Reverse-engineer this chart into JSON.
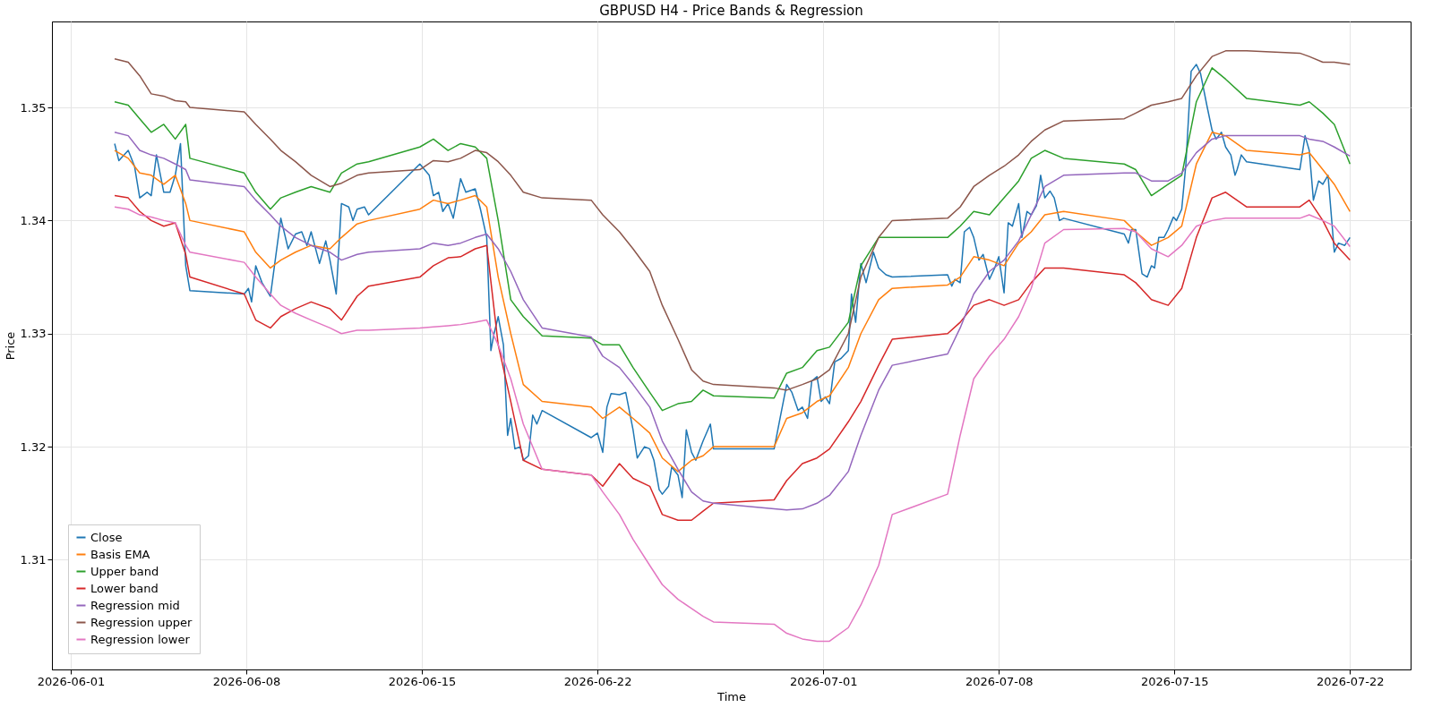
{
  "chart_data": {
    "type": "line",
    "title": "GBPUSD H4 - Price Bands & Regression",
    "xlabel": "Time",
    "ylabel": "Price",
    "xlim": [
      "2026-05-31T06:00",
      "2026-07-24T10:00"
    ],
    "ylim": [
      1.3003,
      1.3576
    ],
    "xticks": [
      "2026-06-01",
      "2026-06-08",
      "2026-06-15",
      "2026-06-22",
      "2026-07-01",
      "2026-07-08",
      "2026-07-15",
      "2026-07-22"
    ],
    "yticks": [
      1.31,
      1.32,
      1.33,
      1.34,
      1.35
    ],
    "grid": true,
    "legend": "bottom left",
    "line_style": "solid",
    "marker": "none",
    "x": [
      "2026-06-02T18:00",
      "2026-06-03T07:00",
      "2026-06-03T18:00",
      "2026-06-04T05:00",
      "2026-06-04T17:00",
      "2026-06-05T04:00",
      "2026-06-05T14:00",
      "2026-06-05T18:00",
      "2026-06-07T22:00",
      "2026-06-08T09:00",
      "2026-06-08T23:00",
      "2026-06-09T09:00",
      "2026-06-09T23:00",
      "2026-06-10T14:00",
      "2026-06-11T08:00",
      "2026-06-11T19:00",
      "2026-06-12T10:00",
      "2026-06-12T21:00",
      "2026-06-14T22:00",
      "2026-06-15T11:00",
      "2026-06-16T01:00",
      "2026-06-16T13:00",
      "2026-06-17T03:00",
      "2026-06-17T14:00",
      "2026-06-18T01:00",
      "2026-06-18T13:00",
      "2026-06-19T01:00",
      "2026-06-19T19:00",
      "2026-06-21T18:00",
      "2026-06-22T05:00",
      "2026-06-22T21:00",
      "2026-06-23T10:00",
      "2026-06-24T02:00",
      "2026-06-24T14:00",
      "2026-06-25T05:00",
      "2026-06-25T18:00",
      "2026-06-26T05:00",
      "2026-06-26T15:00",
      "2026-06-29T01:00",
      "2026-06-29T13:00",
      "2026-06-30T04:00",
      "2026-06-30T18:00",
      "2026-07-01T06:00",
      "2026-07-02T00:00",
      "2026-07-02T12:00",
      "2026-07-03T05:00",
      "2026-07-03T18:00",
      "2026-07-05T23:00",
      "2026-07-06T11:00",
      "2026-07-07T00:00",
      "2026-07-07T15:00",
      "2026-07-08T05:00",
      "2026-07-08T19:00",
      "2026-07-09T07:00",
      "2026-07-09T20:00",
      "2026-07-10T14:00",
      "2026-07-13T00:00",
      "2026-07-13T11:00",
      "2026-07-14T02:00",
      "2026-07-14T18:00",
      "2026-07-15T07:00",
      "2026-07-15T21:00",
      "2026-07-16T12:00",
      "2026-07-17T01:00",
      "2026-07-17T21:00",
      "2026-07-20T00:00",
      "2026-07-20T09:00",
      "2026-07-20T22:00",
      "2026-07-21T09:00",
      "2026-07-22T00:00"
    ],
    "series": [
      {
        "name": "Close",
        "color": "#1f77b4",
        "x": [
          "2026-06-02T18:00",
          "2026-06-02T22:00",
          "2026-06-03T07:00",
          "2026-06-03T13:00",
          "2026-06-03T18:00",
          "2026-06-04T01:00",
          "2026-06-04T05:00",
          "2026-06-04T10:00",
          "2026-06-04T17:00",
          "2026-06-04T23:00",
          "2026-06-05T04:00",
          "2026-06-05T09:00",
          "2026-06-05T14:00",
          "2026-06-05T18:00",
          "2026-06-07T22:00",
          "2026-06-08T02:00",
          "2026-06-08T05:00",
          "2026-06-08T09:00",
          "2026-06-08T15:00",
          "2026-06-08T23:00",
          "2026-06-09T09:00",
          "2026-06-09T16:00",
          "2026-06-09T23:00",
          "2026-06-10T05:00",
          "2026-06-10T10:00",
          "2026-06-10T14:00",
          "2026-06-10T22:00",
          "2026-06-11T04:00",
          "2026-06-11T08:00",
          "2026-06-11T14:00",
          "2026-06-11T19:00",
          "2026-06-12T02:00",
          "2026-06-12T06:00",
          "2026-06-12T10:00",
          "2026-06-12T17:00",
          "2026-06-12T21:00",
          "2026-06-14T22:00",
          "2026-06-15T07:00",
          "2026-06-15T11:00",
          "2026-06-15T16:00",
          "2026-06-15T20:00",
          "2026-06-16T01:00",
          "2026-06-16T06:00",
          "2026-06-16T13:00",
          "2026-06-16T18:00",
          "2026-06-17T03:00",
          "2026-06-17T08:00",
          "2026-06-17T14:00",
          "2026-06-17T18:00",
          "2026-06-17T21:00",
          "2026-06-18T01:00",
          "2026-06-18T06:00",
          "2026-06-18T10:00",
          "2026-06-18T13:00",
          "2026-06-18T17:00",
          "2026-06-18T22:00",
          "2026-06-19T01:00",
          "2026-06-19T06:00",
          "2026-06-19T10:00",
          "2026-06-19T14:00",
          "2026-06-19T19:00",
          "2026-06-21T18:00",
          "2026-06-22T00:00",
          "2026-06-22T05:00",
          "2026-06-22T09:00",
          "2026-06-22T13:00",
          "2026-06-22T21:00",
          "2026-06-23T03:00",
          "2026-06-23T10:00",
          "2026-06-23T14:00",
          "2026-06-23T21:00",
          "2026-06-24T02:00",
          "2026-06-24T06:00",
          "2026-06-24T11:00",
          "2026-06-24T14:00",
          "2026-06-24T20:00",
          "2026-06-24T23:00",
          "2026-06-25T05:00",
          "2026-06-25T09:00",
          "2026-06-25T13:00",
          "2026-06-25T18:00",
          "2026-06-25T22:00",
          "2026-06-26T05:00",
          "2026-06-26T12:00",
          "2026-06-26T15:00",
          "2026-06-29T01:00",
          "2026-06-29T06:00",
          "2026-06-29T13:00",
          "2026-06-29T18:00",
          "2026-06-30T00:00",
          "2026-06-30T04:00",
          "2026-06-30T09:00",
          "2026-06-30T13:00",
          "2026-06-30T18:00",
          "2026-06-30T22:00",
          "2026-07-01T02:00",
          "2026-07-01T06:00",
          "2026-07-01T11:00",
          "2026-07-01T17:00",
          "2026-07-02T00:00",
          "2026-07-02T03:00",
          "2026-07-02T07:00",
          "2026-07-02T12:00",
          "2026-07-02T17:00",
          "2026-07-03T00:00",
          "2026-07-03T05:00",
          "2026-07-03T12:00",
          "2026-07-03T18:00",
          "2026-07-05T23:00",
          "2026-07-06T03:00",
          "2026-07-06T06:00",
          "2026-07-06T11:00",
          "2026-07-06T15:00",
          "2026-07-06T20:00",
          "2026-07-07T00:00",
          "2026-07-07T05:00",
          "2026-07-07T09:00",
          "2026-07-07T15:00",
          "2026-07-07T20:00",
          "2026-07-08T00:00",
          "2026-07-08T05:00",
          "2026-07-08T09:00",
          "2026-07-08T13:00",
          "2026-07-08T19:00",
          "2026-07-08T22:00",
          "2026-07-09T03:00",
          "2026-07-09T07:00",
          "2026-07-09T12:00",
          "2026-07-09T16:00",
          "2026-07-09T20:00",
          "2026-07-10T01:00",
          "2026-07-10T05:00",
          "2026-07-10T10:00",
          "2026-07-10T14:00",
          "2026-07-13T00:00",
          "2026-07-13T04:00",
          "2026-07-13T07:00",
          "2026-07-13T11:00",
          "2026-07-13T17:00",
          "2026-07-13T22:00",
          "2026-07-14T02:00",
          "2026-07-14T05:00",
          "2026-07-14T09:00",
          "2026-07-14T14:00",
          "2026-07-14T18:00",
          "2026-07-14T23:00",
          "2026-07-15T02:00",
          "2026-07-15T07:00",
          "2026-07-15T11:00",
          "2026-07-15T16:00",
          "2026-07-15T21:00",
          "2026-07-16T01:00",
          "2026-07-16T07:00",
          "2026-07-16T12:00",
          "2026-07-16T16:00",
          "2026-07-16T21:00",
          "2026-07-17T01:00",
          "2026-07-17T06:00",
          "2026-07-17T10:00",
          "2026-07-17T12:00",
          "2026-07-17T16:00",
          "2026-07-17T21:00",
          "2026-07-20T00:00",
          "2026-07-20T05:00",
          "2026-07-20T09:00",
          "2026-07-20T13:00",
          "2026-07-20T18:00",
          "2026-07-20T22:00",
          "2026-07-21T03:00",
          "2026-07-21T09:00",
          "2026-07-21T13:00",
          "2026-07-21T19:00",
          "2026-07-22T00:00"
        ],
        "values": [
          1.3468,
          1.3453,
          1.3462,
          1.3448,
          1.342,
          1.3425,
          1.3422,
          1.3458,
          1.3425,
          1.3425,
          1.344,
          1.3468,
          1.336,
          1.3338,
          1.3335,
          1.334,
          1.3328,
          1.336,
          1.3345,
          1.3333,
          1.3402,
          1.3375,
          1.3388,
          1.339,
          1.3378,
          1.339,
          1.3362,
          1.3382,
          1.3365,
          1.3335,
          1.3415,
          1.3412,
          1.34,
          1.341,
          1.3412,
          1.3405,
          1.345,
          1.344,
          1.3422,
          1.3425,
          1.3408,
          1.3415,
          1.3402,
          1.3437,
          1.3425,
          1.3428,
          1.341,
          1.3385,
          1.3285,
          1.33,
          1.3315,
          1.329,
          1.321,
          1.3225,
          1.3198,
          1.32,
          1.3188,
          1.3192,
          1.3228,
          1.322,
          1.3232,
          1.3208,
          1.3212,
          1.3195,
          1.3235,
          1.3247,
          1.3246,
          1.3248,
          1.3215,
          1.319,
          1.32,
          1.3198,
          1.3188,
          1.3162,
          1.3158,
          1.3165,
          1.3182,
          1.3175,
          1.3155,
          1.3215,
          1.3195,
          1.3188,
          1.3205,
          1.322,
          1.3198,
          1.3198,
          1.3222,
          1.3255,
          1.3248,
          1.3232,
          1.3235,
          1.3225,
          1.3258,
          1.3262,
          1.324,
          1.3244,
          1.3238,
          1.3275,
          1.3278,
          1.3285,
          1.3335,
          1.331,
          1.3362,
          1.3345,
          1.3372,
          1.3358,
          1.3352,
          1.335,
          1.3352,
          1.3342,
          1.3348,
          1.3345,
          1.339,
          1.3394,
          1.3385,
          1.3365,
          1.337,
          1.3348,
          1.3358,
          1.3368,
          1.3336,
          1.3398,
          1.3395,
          1.3415,
          1.3385,
          1.3408,
          1.3405,
          1.3413,
          1.344,
          1.342,
          1.3426,
          1.342,
          1.34,
          1.3402,
          1.3388,
          1.338,
          1.3392,
          1.3392,
          1.3353,
          1.335,
          1.336,
          1.3358,
          1.3385,
          1.3385,
          1.3392,
          1.3403,
          1.34,
          1.341,
          1.345,
          1.3532,
          1.3538,
          1.353,
          1.3502,
          1.348,
          1.3472,
          1.3478,
          1.3465,
          1.3458,
          1.344,
          1.3445,
          1.3458,
          1.3452,
          1.3445,
          1.3475,
          1.3462,
          1.3418,
          1.3435,
          1.3432,
          1.344,
          1.3372,
          1.338,
          1.3378,
          1.3385
        ]
      },
      {
        "name": "Basis EMA",
        "color": "#ff7f0e",
        "values": [
          1.3462,
          1.3455,
          1.3442,
          1.344,
          1.3432,
          1.344,
          1.3415,
          1.34,
          1.339,
          1.3372,
          1.3358,
          1.3365,
          1.3372,
          1.3378,
          1.3375,
          1.3385,
          1.3397,
          1.34,
          1.341,
          1.3418,
          1.3415,
          1.3418,
          1.3422,
          1.3412,
          1.335,
          1.33,
          1.3255,
          1.324,
          1.3235,
          1.3225,
          1.3235,
          1.3225,
          1.3212,
          1.319,
          1.3178,
          1.3188,
          1.3192,
          1.32,
          1.32,
          1.3225,
          1.323,
          1.324,
          1.3245,
          1.327,
          1.33,
          1.333,
          1.334,
          1.3343,
          1.335,
          1.3368,
          1.3365,
          1.336,
          1.338,
          1.339,
          1.3405,
          1.3408,
          1.34,
          1.339,
          1.3378,
          1.3385,
          1.3395,
          1.345,
          1.3478,
          1.3475,
          1.3462,
          1.3458,
          1.346,
          1.3445,
          1.3432,
          1.3408
        ]
      },
      {
        "name": "Upper band",
        "color": "#2ca02c",
        "values": [
          1.3505,
          1.3502,
          1.349,
          1.3478,
          1.3485,
          1.3472,
          1.3485,
          1.3455,
          1.3442,
          1.3425,
          1.341,
          1.342,
          1.3425,
          1.343,
          1.3425,
          1.3442,
          1.345,
          1.3452,
          1.3465,
          1.3472,
          1.3462,
          1.3468,
          1.3465,
          1.3455,
          1.34,
          1.333,
          1.3315,
          1.3298,
          1.3296,
          1.329,
          1.329,
          1.327,
          1.3248,
          1.3232,
          1.3238,
          1.324,
          1.325,
          1.3245,
          1.3243,
          1.3265,
          1.327,
          1.3285,
          1.3288,
          1.331,
          1.336,
          1.3385,
          1.3385,
          1.3385,
          1.3395,
          1.3408,
          1.3405,
          1.342,
          1.3435,
          1.3455,
          1.3462,
          1.3455,
          1.345,
          1.3445,
          1.3422,
          1.3432,
          1.344,
          1.3505,
          1.3535,
          1.3525,
          1.3508,
          1.3502,
          1.3505,
          1.3495,
          1.3485,
          1.345
        ]
      },
      {
        "name": "Lower band",
        "color": "#d62728",
        "values": [
          1.3422,
          1.342,
          1.3408,
          1.34,
          1.3395,
          1.3398,
          1.337,
          1.335,
          1.3335,
          1.3312,
          1.3305,
          1.3315,
          1.3322,
          1.3328,
          1.3322,
          1.3312,
          1.3333,
          1.3342,
          1.335,
          1.336,
          1.3367,
          1.3368,
          1.3375,
          1.3378,
          1.329,
          1.324,
          1.3188,
          1.318,
          1.3175,
          1.3165,
          1.3185,
          1.3172,
          1.3165,
          1.314,
          1.3135,
          1.3135,
          1.3143,
          1.315,
          1.3153,
          1.317,
          1.3185,
          1.319,
          1.3198,
          1.3222,
          1.324,
          1.3272,
          1.3295,
          1.33,
          1.331,
          1.3325,
          1.333,
          1.3325,
          1.333,
          1.3345,
          1.3358,
          1.3358,
          1.3352,
          1.3345,
          1.333,
          1.3325,
          1.334,
          1.3385,
          1.342,
          1.3425,
          1.3412,
          1.3412,
          1.3418,
          1.34,
          1.338,
          1.3365
        ]
      },
      {
        "name": "Regression mid",
        "color": "#9467bd",
        "values": [
          1.3478,
          1.3475,
          1.3462,
          1.3458,
          1.3455,
          1.345,
          1.3445,
          1.3436,
          1.343,
          1.3418,
          1.3405,
          1.3395,
          1.3385,
          1.3378,
          1.3372,
          1.3365,
          1.337,
          1.3372,
          1.3375,
          1.338,
          1.3378,
          1.338,
          1.3385,
          1.3388,
          1.3375,
          1.3355,
          1.333,
          1.3305,
          1.3297,
          1.328,
          1.327,
          1.3255,
          1.3235,
          1.3205,
          1.318,
          1.316,
          1.3152,
          1.315,
          1.3145,
          1.3144,
          1.3145,
          1.315,
          1.3157,
          1.3178,
          1.321,
          1.325,
          1.3272,
          1.3282,
          1.3305,
          1.3335,
          1.3355,
          1.3365,
          1.3382,
          1.3405,
          1.343,
          1.344,
          1.3442,
          1.3442,
          1.3435,
          1.3435,
          1.3442,
          1.346,
          1.3472,
          1.3475,
          1.3475,
          1.3475,
          1.3472,
          1.347,
          1.3465,
          1.3457
        ]
      },
      {
        "name": "Regression upper",
        "color": "#8c564b",
        "values": [
          1.3543,
          1.354,
          1.3528,
          1.3512,
          1.351,
          1.3506,
          1.3505,
          1.35,
          1.3496,
          1.3485,
          1.3472,
          1.3462,
          1.3452,
          1.344,
          1.343,
          1.3433,
          1.344,
          1.3442,
          1.3445,
          1.3453,
          1.3452,
          1.3455,
          1.3462,
          1.346,
          1.3452,
          1.344,
          1.3425,
          1.342,
          1.3418,
          1.3405,
          1.339,
          1.3375,
          1.3355,
          1.3325,
          1.3295,
          1.3268,
          1.3258,
          1.3255,
          1.3252,
          1.325,
          1.3255,
          1.326,
          1.3268,
          1.33,
          1.335,
          1.3385,
          1.34,
          1.3402,
          1.3412,
          1.343,
          1.344,
          1.3448,
          1.3458,
          1.347,
          1.348,
          1.3488,
          1.349,
          1.3495,
          1.3502,
          1.3505,
          1.3508,
          1.3528,
          1.3545,
          1.355,
          1.355,
          1.3548,
          1.3545,
          1.354,
          1.354,
          1.3538
        ]
      },
      {
        "name": "Regression lower",
        "color": "#e377c2",
        "values": [
          1.3412,
          1.341,
          1.3405,
          1.3403,
          1.34,
          1.3398,
          1.3378,
          1.3372,
          1.3363,
          1.335,
          1.3335,
          1.3325,
          1.3318,
          1.3312,
          1.3305,
          1.33,
          1.3303,
          1.3303,
          1.3305,
          1.3306,
          1.3307,
          1.3308,
          1.331,
          1.3312,
          1.329,
          1.326,
          1.322,
          1.318,
          1.3175,
          1.316,
          1.314,
          1.3118,
          1.3095,
          1.3078,
          1.3065,
          1.3057,
          1.305,
          1.3045,
          1.3043,
          1.3035,
          1.303,
          1.3028,
          1.3028,
          1.304,
          1.306,
          1.3095,
          1.314,
          1.3158,
          1.321,
          1.326,
          1.328,
          1.3295,
          1.3315,
          1.334,
          1.338,
          1.3392,
          1.3393,
          1.339,
          1.3375,
          1.3368,
          1.3378,
          1.3395,
          1.34,
          1.3402,
          1.3402,
          1.3402,
          1.3405,
          1.34,
          1.3395,
          1.3377
        ]
      }
    ]
  }
}
